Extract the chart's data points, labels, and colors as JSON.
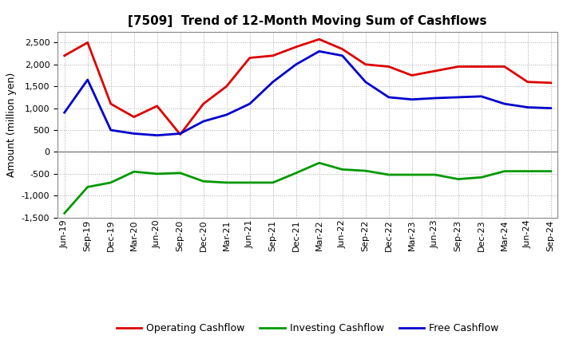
{
  "title": "[7509]  Trend of 12-Month Moving Sum of Cashflows",
  "ylabel": "Amount (million yen)",
  "xlabels": [
    "Jun-19",
    "Sep-19",
    "Dec-19",
    "Mar-20",
    "Jun-20",
    "Sep-20",
    "Dec-20",
    "Mar-21",
    "Jun-21",
    "Sep-21",
    "Dec-21",
    "Mar-22",
    "Jun-22",
    "Sep-22",
    "Dec-22",
    "Mar-23",
    "Jun-23",
    "Sep-23",
    "Dec-23",
    "Mar-24",
    "Jun-24",
    "Sep-24"
  ],
  "operating": [
    2200,
    2500,
    1100,
    800,
    1050,
    400,
    1100,
    1500,
    2150,
    2200,
    2400,
    2575,
    2350,
    2000,
    1950,
    1750,
    1850,
    1950,
    1950,
    1950,
    1600,
    1580
  ],
  "investing": [
    -1400,
    -800,
    -700,
    -450,
    -500,
    -480,
    -670,
    -700,
    -700,
    -700,
    -480,
    -250,
    -400,
    -430,
    -520,
    -520,
    -520,
    -620,
    -580,
    -440,
    -440,
    -440
  ],
  "free": [
    900,
    1650,
    500,
    420,
    380,
    420,
    700,
    850,
    1100,
    1600,
    2000,
    2300,
    2200,
    1600,
    1250,
    1200,
    1230,
    1250,
    1270,
    1100,
    1020,
    1000
  ],
  "operating_color": "#dd0000",
  "investing_color": "#009900",
  "free_color": "#0000cc",
  "bg_color": "#ffffff",
  "plot_bg_color": "#ffffff",
  "grid_color": "#aaaaaa",
  "ylim": [
    -1500,
    2750
  ],
  "yticks": [
    -1500,
    -1000,
    -500,
    0,
    500,
    1000,
    1500,
    2000,
    2500
  ],
  "title_fontsize": 11,
  "axis_label_fontsize": 9,
  "tick_fontsize": 8,
  "legend_fontsize": 9,
  "linewidth": 2.0
}
